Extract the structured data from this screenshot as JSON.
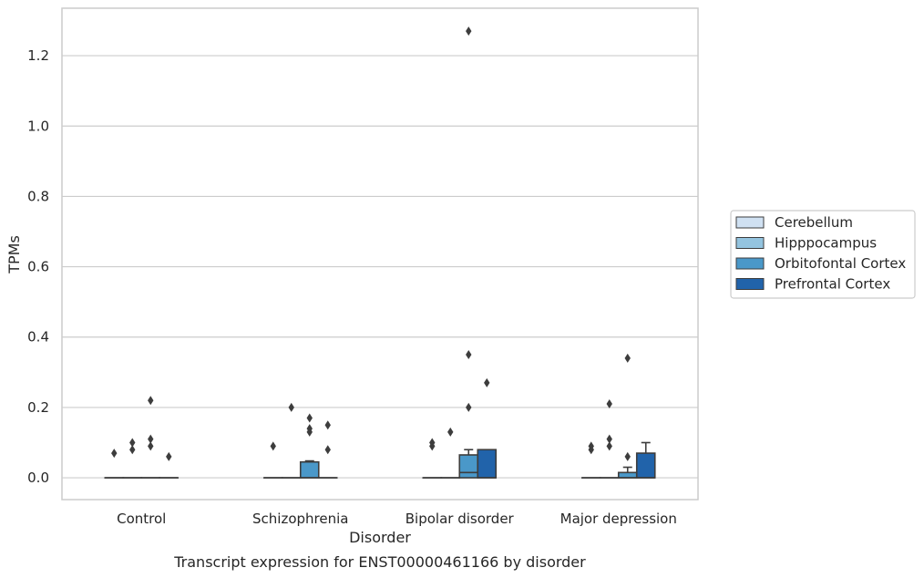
{
  "caption": "Transcript expression for ENST00000461166 by disorder",
  "colors": {
    "grid": "#cccccc",
    "frame": "#cccccc",
    "edge": "#3d3d3d",
    "text": "#262626"
  },
  "chart_data": {
    "type": "box",
    "title": "",
    "xlabel": "Disorder",
    "ylabel": "TPMs",
    "ylim": [
      -0.062,
      1.335
    ],
    "yticks": [
      0.0,
      0.2,
      0.4,
      0.6,
      0.8,
      1.0,
      1.2
    ],
    "ytick_labels": [
      "0.0",
      "0.2",
      "0.4",
      "0.6",
      "0.8",
      "1.0",
      "1.2"
    ],
    "grid": "horizontal",
    "legend_position": "right",
    "categories": [
      "Control",
      "Schizophrenia",
      "Bipolar disorder",
      "Major depression"
    ],
    "series": [
      {
        "name": "Cerebellum",
        "color": "#d0e1f2",
        "boxes": [
          {
            "q1": 0,
            "median": 0,
            "q3": 0,
            "whisker_low": 0,
            "whisker_high": 0,
            "outliers": [
              0.07
            ]
          },
          {
            "q1": 0,
            "median": 0,
            "q3": 0,
            "whisker_low": 0,
            "whisker_high": 0,
            "outliers": [
              0.09
            ]
          },
          {
            "q1": 0,
            "median": 0,
            "q3": 0,
            "whisker_low": 0,
            "whisker_high": 0,
            "outliers": [
              0.09,
              0.1
            ]
          },
          {
            "q1": 0,
            "median": 0,
            "q3": 0,
            "whisker_low": 0,
            "whisker_high": 0,
            "outliers": [
              0.08,
              0.09
            ]
          }
        ]
      },
      {
        "name": "Hipppocampus",
        "color": "#94c4df",
        "boxes": [
          {
            "q1": 0,
            "median": 0,
            "q3": 0,
            "whisker_low": 0,
            "whisker_high": 0,
            "outliers": [
              0.08,
              0.1
            ]
          },
          {
            "q1": 0,
            "median": 0,
            "q3": 0,
            "whisker_low": 0,
            "whisker_high": 0,
            "outliers": [
              0.2
            ]
          },
          {
            "q1": 0,
            "median": 0,
            "q3": 0,
            "whisker_low": 0,
            "whisker_high": 0,
            "outliers": [
              0.13
            ]
          },
          {
            "q1": 0,
            "median": 0,
            "q3": 0,
            "whisker_low": 0,
            "whisker_high": 0,
            "outliers": [
              0.09,
              0.11,
              0.21
            ]
          }
        ]
      },
      {
        "name": "Orbitofontal Cortex",
        "color": "#4a98c9",
        "boxes": [
          {
            "q1": 0,
            "median": 0,
            "q3": 0,
            "whisker_low": 0,
            "whisker_high": 0,
            "outliers": [
              0.09,
              0.11,
              0.22
            ]
          },
          {
            "q1": 0,
            "median": 0,
            "q3": 0.045,
            "whisker_low": 0,
            "whisker_high": 0.048,
            "outliers": [
              0.13,
              0.14,
              0.17
            ]
          },
          {
            "q1": 0,
            "median": 0.015,
            "q3": 0.065,
            "whisker_low": 0,
            "whisker_high": 0.08,
            "outliers": [
              0.2,
              0.35,
              1.27
            ]
          },
          {
            "q1": 0,
            "median": 0,
            "q3": 0.015,
            "whisker_low": 0,
            "whisker_high": 0.03,
            "outliers": [
              0.06,
              0.34
            ]
          }
        ]
      },
      {
        "name": "Prefrontal Cortex",
        "color": "#2163aa",
        "boxes": [
          {
            "q1": 0,
            "median": 0,
            "q3": 0,
            "whisker_low": 0,
            "whisker_high": 0,
            "outliers": [
              0.06
            ]
          },
          {
            "q1": 0,
            "median": 0,
            "q3": 0,
            "whisker_low": 0,
            "whisker_high": 0,
            "outliers": [
              0.08,
              0.15
            ]
          },
          {
            "q1": 0,
            "median": 0,
            "q3": 0.08,
            "whisker_low": 0,
            "whisker_high": 0.08,
            "outliers": [
              0.27
            ]
          },
          {
            "q1": 0,
            "median": 0,
            "q3": 0.07,
            "whisker_low": 0,
            "whisker_high": 0.1,
            "outliers": []
          }
        ]
      }
    ]
  }
}
